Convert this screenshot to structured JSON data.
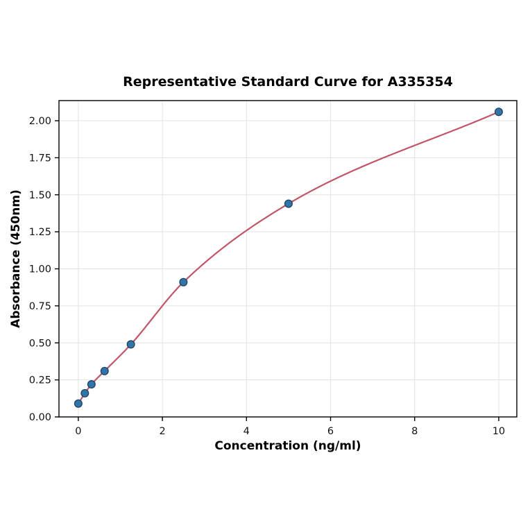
{
  "chart_data": {
    "type": "scatter",
    "title": "Representative Standard Curve for A335354",
    "xlabel": "Concentration (ng/ml)",
    "ylabel": "Absorbance (450nm)",
    "series": [
      {
        "name": "standards",
        "x": [
          0,
          0.156,
          0.313,
          0.625,
          1.25,
          2.5,
          5,
          10
        ],
        "y": [
          0.09,
          0.16,
          0.22,
          0.31,
          0.49,
          0.91,
          1.44,
          2.06
        ]
      }
    ],
    "fit_curve": "smooth 4PL-style fit through the standard points",
    "xlim": [
      -0.46,
      10.43
    ],
    "ylim": [
      0,
      2.136
    ],
    "x_ticks": [
      0,
      2,
      4,
      6,
      8,
      10
    ],
    "y_ticks": [
      0.0,
      0.25,
      0.5,
      0.75,
      1.0,
      1.25,
      1.5,
      1.75,
      2.0
    ],
    "grid": true,
    "legend": "none",
    "colors": {
      "curve": "#c05568",
      "point_fill": "#3274a8",
      "point_edge": "#1d3e5e",
      "grid": "#e3e3e3",
      "frame": "#000000",
      "background": "#ffffff"
    }
  }
}
